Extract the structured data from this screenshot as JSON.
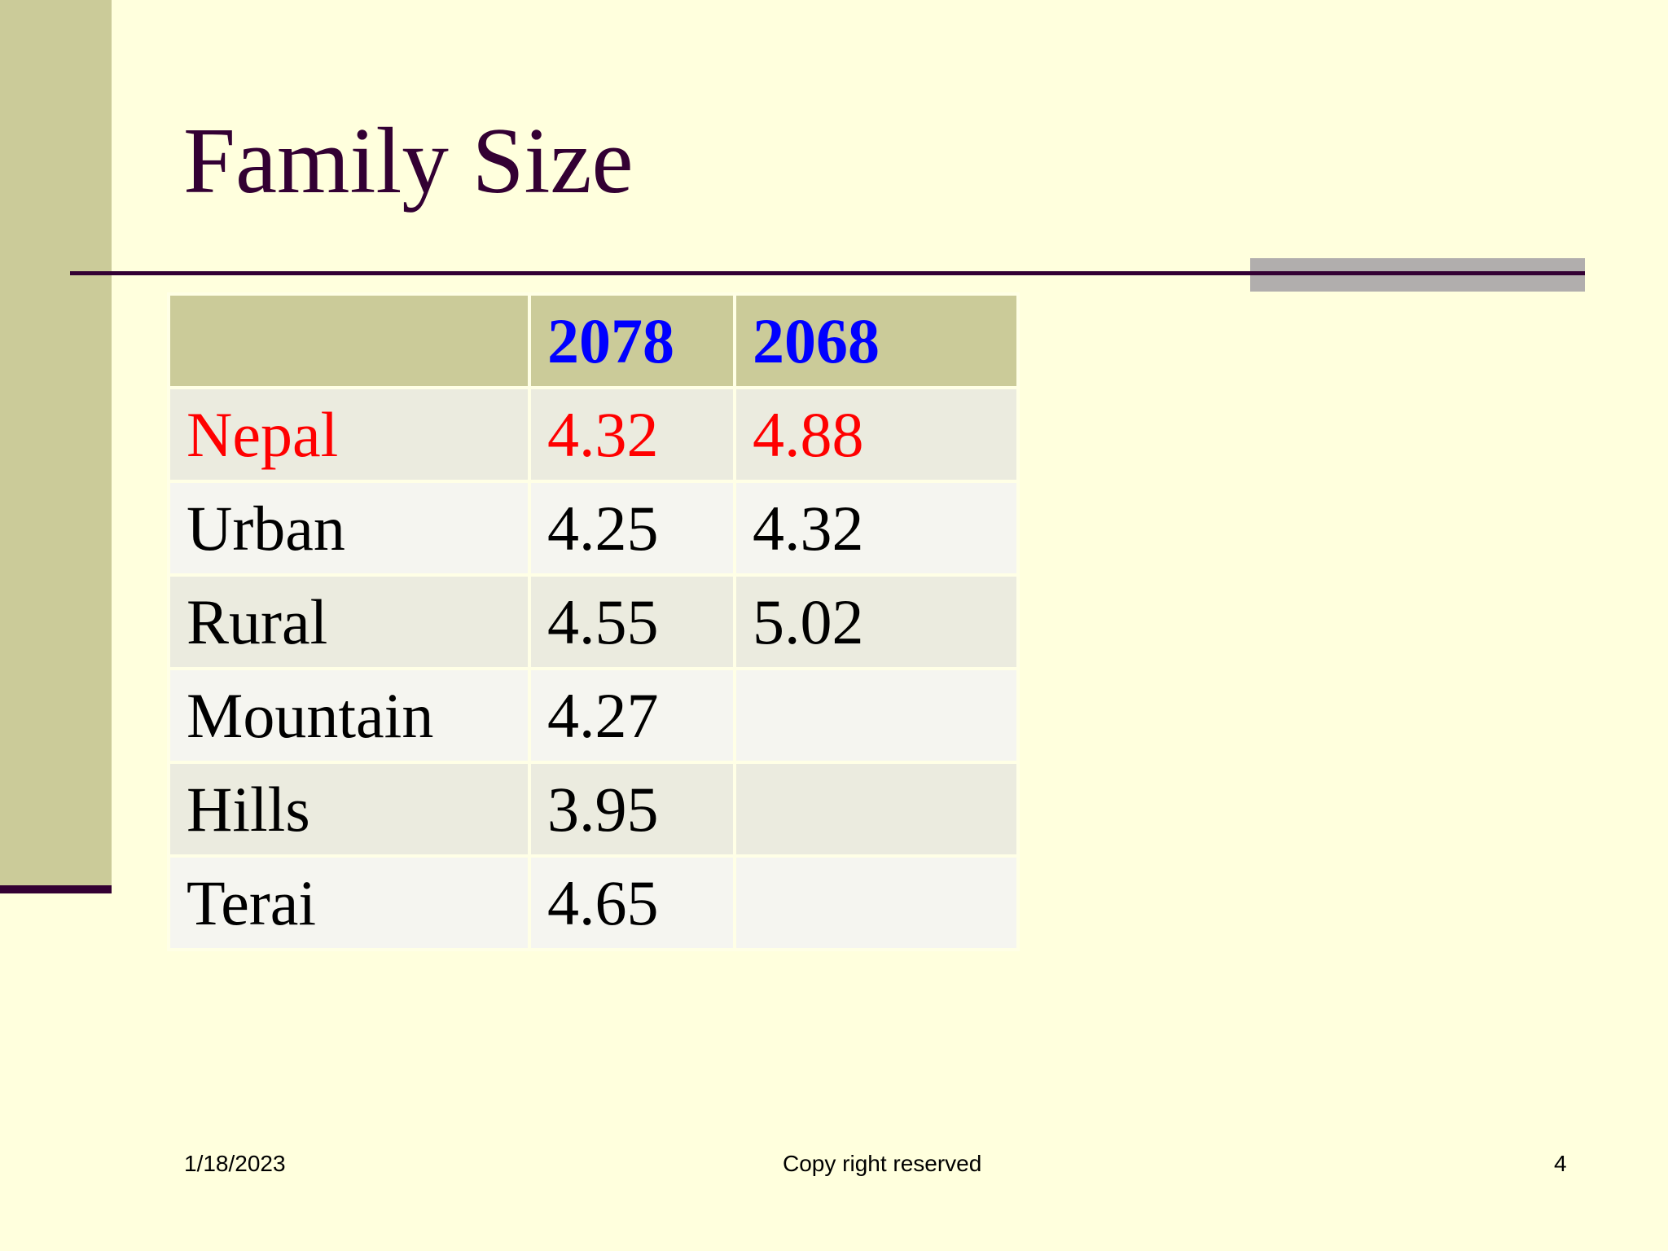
{
  "slide": {
    "title": "Family Size"
  },
  "table": {
    "headers": [
      "",
      "2078",
      "2068"
    ],
    "rows": [
      {
        "label": "Nepal",
        "v2078": "4.32",
        "v2068": "4.88"
      },
      {
        "label": "Urban",
        "v2078": "4.25",
        "v2068": "4.32"
      },
      {
        "label": "Rural",
        "v2078": "4.55",
        "v2068": "5.02"
      },
      {
        "label": "Mountain",
        "v2078": "4.27",
        "v2068": ""
      },
      {
        "label": "Hills",
        "v2078": "3.95",
        "v2068": ""
      },
      {
        "label": "Terai",
        "v2078": "4.65",
        "v2068": ""
      }
    ]
  },
  "footer": {
    "date": "1/18/2023",
    "center_text": "Copy right reserved",
    "page_number": "4"
  },
  "colors": {
    "background": "#FFFFDD",
    "accent_bar": "#CBCB99",
    "title_text": "#330033",
    "header_text": "#0000FF",
    "highlight_text": "#FF0000"
  }
}
